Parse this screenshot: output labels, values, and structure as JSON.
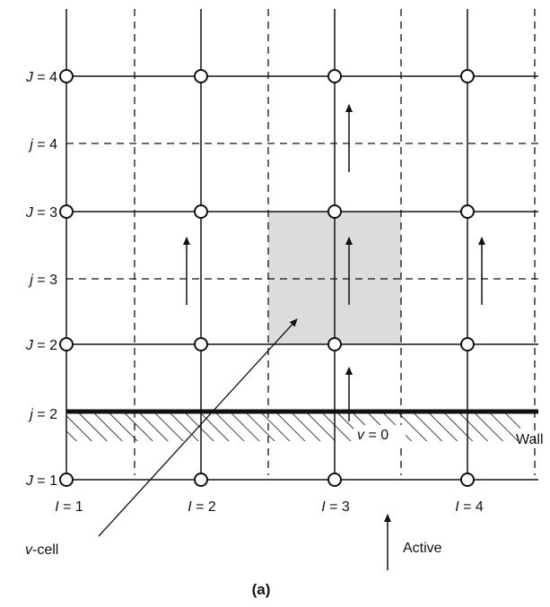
{
  "figure": {
    "row_labels_major": [
      {
        "var": "J",
        "value": "1"
      },
      {
        "var": "J",
        "value": "2"
      },
      {
        "var": "J",
        "value": "3"
      },
      {
        "var": "J",
        "value": "4"
      }
    ],
    "row_labels_minor": [
      {
        "var": "j",
        "value": "2"
      },
      {
        "var": "j",
        "value": "3"
      },
      {
        "var": "j",
        "value": "4"
      }
    ],
    "col_labels": [
      {
        "var": "I",
        "value": "1"
      },
      {
        "var": "I",
        "value": "2"
      },
      {
        "var": "I",
        "value": "3"
      },
      {
        "var": "I",
        "value": "4"
      }
    ],
    "wall_label": "Wall",
    "v_zero": {
      "var": "v",
      "rest": " = 0"
    },
    "vcell": {
      "var": "v",
      "rest": "-cell"
    },
    "active_label": "Active",
    "caption": "(a)",
    "colors": {
      "line": "#111111",
      "cell_fill": "#dcdcdc",
      "node_fill": "#ffffff"
    }
  }
}
